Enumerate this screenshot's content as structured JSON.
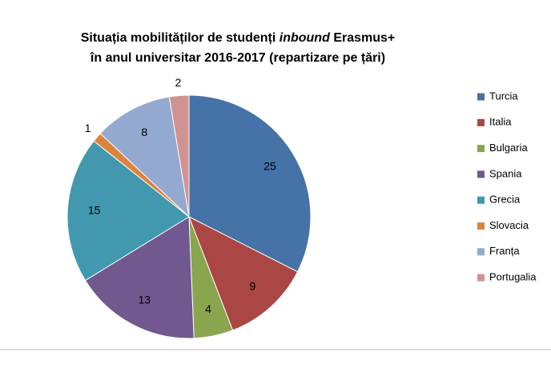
{
  "chart_data": {
    "type": "pie",
    "title": {
      "line1": [
        "Situația mobilităților de studenți",
        "inbound",
        "Erasmus+"
      ],
      "line2": "în anul universitar 2016-2017 (repartizare pe țări)"
    },
    "categories": [
      "Turcia",
      "Italia",
      "Bulgaria",
      "Spania",
      "Grecia",
      "Slovacia",
      "Franța",
      "Portugalia"
    ],
    "values": [
      25,
      9,
      4,
      13,
      15,
      1,
      8,
      2
    ],
    "colors": [
      "#4572a7",
      "#aa4643",
      "#89a54e",
      "#71588f",
      "#4198af",
      "#db843d",
      "#93a9cf",
      "#d19392"
    ],
    "legend": "right"
  }
}
